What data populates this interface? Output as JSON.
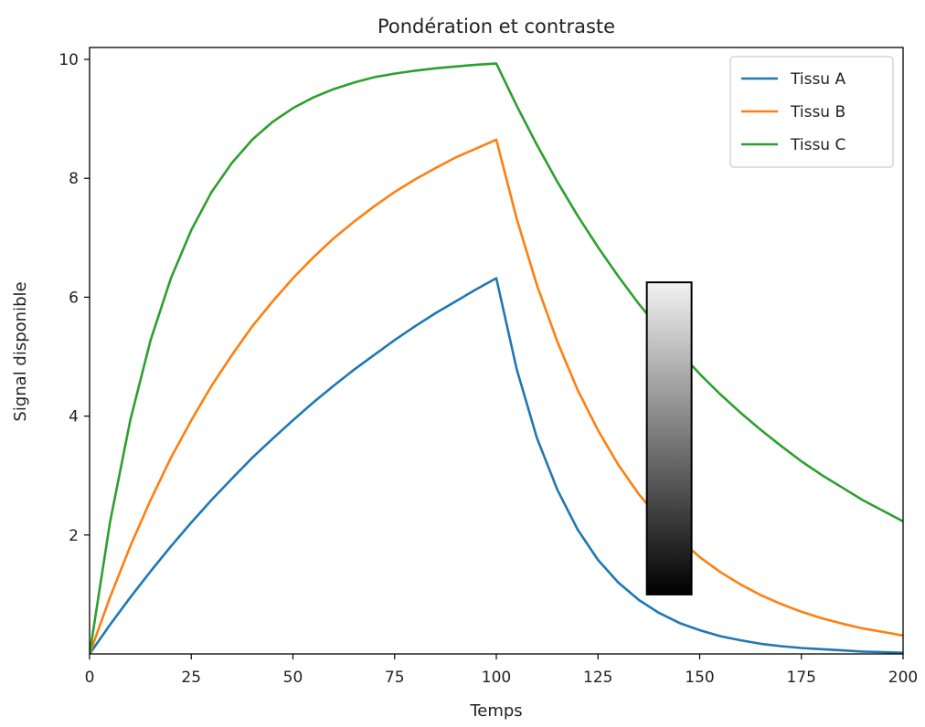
{
  "chart_data": {
    "type": "line",
    "title": "Pondération et contraste",
    "xlabel": "Temps",
    "ylabel": "Signal disponible",
    "xlim": [
      0,
      200
    ],
    "ylim": [
      0,
      10.2
    ],
    "xticks": [
      "0",
      "25",
      "50",
      "75",
      "100",
      "125",
      "150",
      "175",
      "200"
    ],
    "yticks": [
      "2",
      "4",
      "6",
      "8",
      "10"
    ],
    "grid": false,
    "legend_position": "top-right",
    "x": [
      0,
      5,
      10,
      15,
      20,
      25,
      30,
      35,
      40,
      45,
      50,
      55,
      60,
      65,
      70,
      75,
      80,
      85,
      90,
      95,
      100,
      105,
      110,
      115,
      120,
      125,
      130,
      135,
      140,
      145,
      150,
      155,
      160,
      165,
      170,
      175,
      180,
      185,
      190,
      195,
      200
    ],
    "series": [
      {
        "name": "Tissu A",
        "color": "#1f77b4",
        "values": [
          0.0,
          0.49,
          0.95,
          1.39,
          1.81,
          2.21,
          2.59,
          2.95,
          3.3,
          3.62,
          3.93,
          4.23,
          4.51,
          4.78,
          5.03,
          5.28,
          5.51,
          5.73,
          5.93,
          6.13,
          6.32,
          4.79,
          3.63,
          2.76,
          2.09,
          1.58,
          1.2,
          0.91,
          0.69,
          0.52,
          0.4,
          0.3,
          0.23,
          0.17,
          0.13,
          0.1,
          0.08,
          0.06,
          0.04,
          0.03,
          0.02
        ]
      },
      {
        "name": "Tissu B",
        "color": "#ff7f0e",
        "values": [
          0.0,
          0.95,
          1.81,
          2.59,
          3.3,
          3.93,
          4.51,
          5.03,
          5.51,
          5.93,
          6.32,
          6.67,
          6.99,
          7.27,
          7.53,
          7.77,
          7.98,
          8.17,
          8.35,
          8.5,
          8.65,
          7.32,
          6.2,
          5.25,
          4.44,
          3.76,
          3.18,
          2.69,
          2.28,
          1.93,
          1.63,
          1.38,
          1.17,
          0.99,
          0.84,
          0.71,
          0.6,
          0.51,
          0.43,
          0.37,
          0.31
        ]
      },
      {
        "name": "Tissu C",
        "color": "#2ca02c",
        "values": [
          0.0,
          2.21,
          3.93,
          5.28,
          6.32,
          7.13,
          7.77,
          8.26,
          8.65,
          8.95,
          9.18,
          9.36,
          9.5,
          9.61,
          9.7,
          9.76,
          9.81,
          9.85,
          9.88,
          9.91,
          9.93,
          9.22,
          8.56,
          7.94,
          7.37,
          6.84,
          6.35,
          5.89,
          5.47,
          5.08,
          4.71,
          4.37,
          4.06,
          3.77,
          3.5,
          3.24,
          3.01,
          2.8,
          2.59,
          2.41,
          2.23
        ]
      }
    ],
    "colorbar": {
      "cmap": "gray",
      "x_range": [
        137,
        148
      ],
      "y_range": [
        1.0,
        6.25
      ],
      "top_color": "#f2f2f2",
      "bottom_color": "#000000"
    }
  }
}
